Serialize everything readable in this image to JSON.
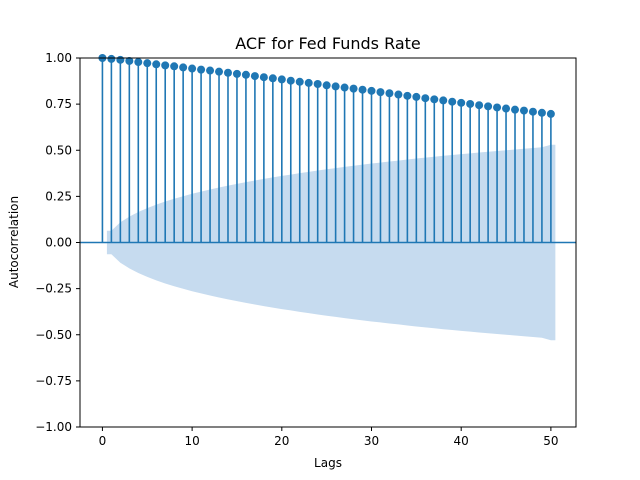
{
  "chart_data": {
    "type": "stem",
    "title": "ACF for Fed Funds Rate",
    "xlabel": "Lags",
    "ylabel": "Autocorrelation",
    "xlim": [
      -2.5,
      52.8
    ],
    "ylim": [
      -1.0,
      1.0
    ],
    "xticks": [
      0,
      10,
      20,
      30,
      40,
      50
    ],
    "xtick_labels": [
      "0",
      "10",
      "20",
      "30",
      "40",
      "50"
    ],
    "yticks": [
      -1.0,
      -0.75,
      -0.5,
      -0.25,
      0.0,
      0.25,
      0.5,
      0.75,
      1.0
    ],
    "ytick_labels": [
      "−1.00",
      "−0.75",
      "−0.50",
      "−0.25",
      "0.00",
      "0.25",
      "0.50",
      "0.75",
      "1.00"
    ],
    "grid": false,
    "colors": {
      "stem": "#1f77b4",
      "confidence_band": "#c6dbef"
    },
    "lags": [
      0,
      1,
      2,
      3,
      4,
      5,
      6,
      7,
      8,
      9,
      10,
      11,
      12,
      13,
      14,
      15,
      16,
      17,
      18,
      19,
      20,
      21,
      22,
      23,
      24,
      25,
      26,
      27,
      28,
      29,
      30,
      31,
      32,
      33,
      34,
      35,
      36,
      37,
      38,
      39,
      40,
      41,
      42,
      43,
      44,
      45,
      46,
      47,
      48,
      49,
      50
    ],
    "acf": [
      1.0,
      0.995,
      0.99,
      0.984,
      0.978,
      0.972,
      0.966,
      0.96,
      0.955,
      0.949,
      0.943,
      0.937,
      0.932,
      0.926,
      0.92,
      0.914,
      0.909,
      0.902,
      0.896,
      0.89,
      0.884,
      0.877,
      0.871,
      0.865,
      0.859,
      0.852,
      0.846,
      0.84,
      0.834,
      0.828,
      0.822,
      0.815,
      0.809,
      0.802,
      0.795,
      0.789,
      0.782,
      0.776,
      0.77,
      0.763,
      0.757,
      0.751,
      0.744,
      0.738,
      0.732,
      0.726,
      0.72,
      0.715,
      0.709,
      0.703,
      0.697
    ],
    "confint_halfwidth": [
      0.0,
      0.064,
      0.11,
      0.14,
      0.165,
      0.186,
      0.205,
      0.222,
      0.237,
      0.251,
      0.264,
      0.276,
      0.287,
      0.298,
      0.308,
      0.318,
      0.327,
      0.336,
      0.345,
      0.353,
      0.361,
      0.368,
      0.376,
      0.383,
      0.39,
      0.397,
      0.403,
      0.41,
      0.416,
      0.422,
      0.428,
      0.433,
      0.439,
      0.444,
      0.45,
      0.455,
      0.46,
      0.465,
      0.47,
      0.474,
      0.479,
      0.483,
      0.488,
      0.492,
      0.496,
      0.5,
      0.504,
      0.508,
      0.512,
      0.516,
      0.53
    ]
  }
}
